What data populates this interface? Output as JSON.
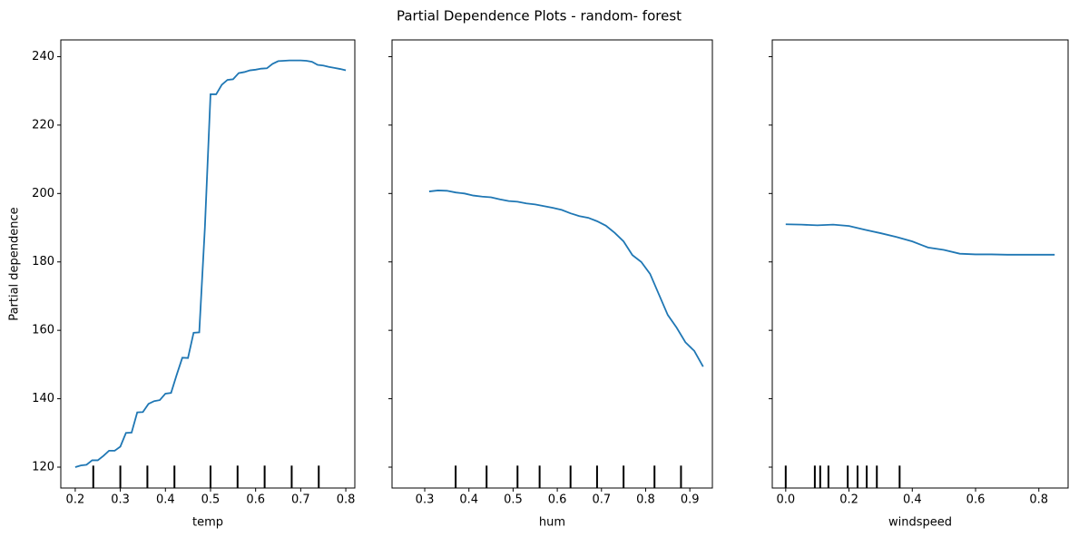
{
  "title": "Partial Dependence Plots - random- forest",
  "chart_data": [
    {
      "type": "line",
      "xlabel": "temp",
      "ylabel": "Partial dependence",
      "x": [
        0.2,
        0.2125,
        0.225,
        0.2375,
        0.25,
        0.2625,
        0.275,
        0.2875,
        0.3,
        0.3125,
        0.325,
        0.3375,
        0.35,
        0.3625,
        0.375,
        0.3875,
        0.4,
        0.4125,
        0.425,
        0.4375,
        0.45,
        0.4625,
        0.475,
        0.4875,
        0.5,
        0.5125,
        0.525,
        0.5375,
        0.55,
        0.5625,
        0.575,
        0.5875,
        0.6,
        0.6125,
        0.625,
        0.6375,
        0.65,
        0.6625,
        0.675,
        0.6875,
        0.7,
        0.7125,
        0.725,
        0.7375,
        0.75,
        0.7625,
        0.775,
        0.7875,
        0.8
      ],
      "series": [
        {
          "color": "#1f77b4",
          "values": [
            120,
            120.5,
            120.7,
            122,
            122,
            123.3,
            124.8,
            124.8,
            126,
            130,
            130.1,
            136,
            136.1,
            138.5,
            139.3,
            139.6,
            141.5,
            141.7,
            147,
            152,
            151.9,
            159.3,
            159.4,
            190,
            229,
            229,
            231.8,
            233.2,
            233.4,
            235.2,
            235.5,
            236,
            236.2,
            236.5,
            236.6,
            237.9,
            238.7,
            238.8,
            238.9,
            238.9,
            238.9,
            238.8,
            238.5,
            237.6,
            237.4,
            237,
            236.7,
            236.4,
            236
          ]
        }
      ],
      "deciles": [
        0.24,
        0.3,
        0.36,
        0.42,
        0.5,
        0.56,
        0.62,
        0.68,
        0.74
      ],
      "xlim": [
        0.168,
        0.82
      ],
      "xticks": [
        0.2,
        0.3,
        0.4,
        0.5,
        0.6,
        0.7,
        0.8
      ],
      "ylim": [
        113.9,
        244.9
      ],
      "yticks": [
        120,
        140,
        160,
        180,
        200,
        220,
        240
      ],
      "ytick_labels": true
    },
    {
      "type": "line",
      "xlabel": "hum",
      "x": [
        0.31,
        0.33,
        0.35,
        0.37,
        0.39,
        0.41,
        0.43,
        0.45,
        0.47,
        0.49,
        0.51,
        0.53,
        0.55,
        0.57,
        0.59,
        0.61,
        0.63,
        0.65,
        0.67,
        0.69,
        0.71,
        0.73,
        0.75,
        0.77,
        0.79,
        0.81,
        0.83,
        0.85,
        0.87,
        0.89,
        0.91,
        0.93
      ],
      "series": [
        {
          "color": "#1f77b4",
          "values": [
            200.6,
            200.9,
            200.8,
            200.3,
            200,
            199.4,
            199.1,
            198.9,
            198.3,
            197.8,
            197.6,
            197.1,
            196.8,
            196.3,
            195.8,
            195.2,
            194.2,
            193.4,
            192.9,
            191.9,
            190.6,
            188.5,
            186,
            182,
            180,
            176.5,
            170.5,
            164.5,
            160.8,
            156.5,
            154,
            149.4
          ]
        }
      ],
      "deciles": [
        0.37,
        0.44,
        0.51,
        0.56,
        0.63,
        0.69,
        0.75,
        0.82,
        0.88
      ],
      "xlim": [
        0.226,
        0.951
      ],
      "xticks": [
        0.3,
        0.4,
        0.5,
        0.6,
        0.7,
        0.8,
        0.9
      ],
      "ylim": [
        113.9,
        244.9
      ],
      "yticks": [
        120,
        140,
        160,
        180,
        200,
        220,
        240
      ],
      "ytick_labels": false
    },
    {
      "type": "line",
      "xlabel": "windspeed",
      "x": [
        0,
        0.05,
        0.1,
        0.15,
        0.2,
        0.25,
        0.3,
        0.35,
        0.4,
        0.45,
        0.5,
        0.55,
        0.6,
        0.65,
        0.7,
        0.75,
        0.8,
        0.85
      ],
      "series": [
        {
          "color": "#1f77b4",
          "values": [
            191,
            190.9,
            190.7,
            190.9,
            190.5,
            189.4,
            188.4,
            187.3,
            186,
            184.2,
            183.5,
            182.4,
            182.2,
            182.2,
            182.1,
            182.1,
            182.1,
            182.1
          ]
        }
      ],
      "deciles": [
        0,
        0.092,
        0.109,
        0.135,
        0.196,
        0.227,
        0.256,
        0.288,
        0.36
      ],
      "xlim": [
        -0.0425,
        0.8925
      ],
      "xticks": [
        {
          "value": 0,
          "label": "0.0"
        },
        0.2,
        0.4,
        0.6,
        0.8
      ],
      "ylim": [
        113.9,
        244.9
      ],
      "yticks": [
        120,
        140,
        160,
        180,
        200,
        220,
        240
      ],
      "ytick_labels": false
    }
  ]
}
